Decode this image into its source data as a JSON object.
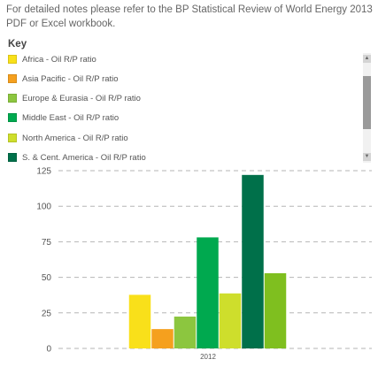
{
  "note": "For detailed notes please refer to the BP Statistical Review of World Energy 2013 PDF or Excel workbook.",
  "legend": {
    "title": "Key",
    "items": [
      {
        "label": "Africa - Oil R/P ratio",
        "color": "#f9e01a"
      },
      {
        "label": "Asia Pacific - Oil R/P ratio",
        "color": "#f5a01e"
      },
      {
        "label": "Europe & Eurasia - Oil R/P ratio",
        "color": "#8cc63f"
      },
      {
        "label": "Middle East - Oil R/P ratio",
        "color": "#00a94f"
      },
      {
        "label": "North America - Oil R/P ratio",
        "color": "#cede2c"
      },
      {
        "label": "S. & Cent. America - Oil R/P ratio",
        "color": "#00704a"
      }
    ]
  },
  "scrollbar": {
    "up_icon": "arrow-up-icon",
    "down_icon": "arrow-down-icon"
  },
  "chart_data": {
    "type": "bar",
    "categories": [
      "2012"
    ],
    "series": [
      {
        "name": "Africa - Oil R/P ratio",
        "values": [
          37.7
        ],
        "color": "#f9e01a"
      },
      {
        "name": "Asia Pacific - Oil R/P ratio",
        "values": [
          13.6
        ],
        "color": "#f5a01e"
      },
      {
        "name": "Europe & Eurasia - Oil R/P ratio",
        "values": [
          22.4
        ],
        "color": "#8cc63f"
      },
      {
        "name": "Middle East - Oil R/P ratio",
        "values": [
          78.1
        ],
        "color": "#00a94f"
      },
      {
        "name": "North America - Oil R/P ratio",
        "values": [
          38.7
        ],
        "color": "#cede2c"
      },
      {
        "name": "S. & Cent. America - Oil R/P ratio",
        "values": [
          122.0
        ],
        "color": "#00704a"
      },
      {
        "name": "",
        "values": [
          52.9
        ],
        "color": "#7fbf1f"
      }
    ],
    "ylim": [
      0,
      125
    ],
    "yticks": [
      "0",
      "25",
      "50",
      "75",
      "100",
      "125"
    ],
    "grid": true,
    "legend_position": "top"
  }
}
